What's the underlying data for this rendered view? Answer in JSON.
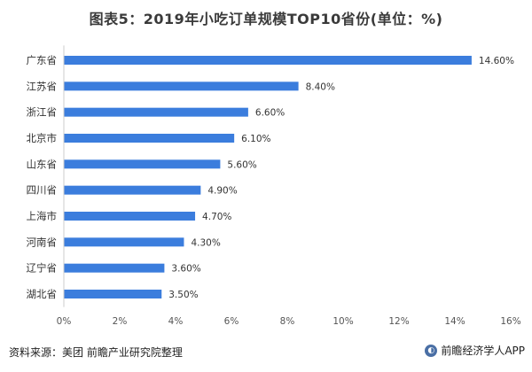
{
  "chart_data": {
    "type": "bar",
    "orientation": "horizontal",
    "title": "图表5：2019年小吃订单规模TOP10省份(单位：%)",
    "categories": [
      "广东省",
      "江苏省",
      "浙江省",
      "北京市",
      "山东省",
      "四川省",
      "上海市",
      "河南省",
      "辽宁省",
      "湖北省"
    ],
    "values": [
      14.6,
      8.4,
      6.6,
      6.1,
      5.6,
      4.9,
      4.7,
      4.3,
      3.6,
      3.5
    ],
    "value_labels": [
      "14.60%",
      "8.40%",
      "6.60%",
      "6.10%",
      "5.60%",
      "4.90%",
      "4.70%",
      "4.30%",
      "3.60%",
      "3.50%"
    ],
    "xlim": [
      0,
      16
    ],
    "x_ticks": [
      0,
      2,
      4,
      6,
      8,
      10,
      12,
      14,
      16
    ],
    "x_tick_labels": [
      "0%",
      "2%",
      "4%",
      "6%",
      "8%",
      "10%",
      "12%",
      "14%",
      "16%"
    ],
    "grid": false,
    "bar_color": "#3b7ddd",
    "xlabel": "",
    "ylabel": ""
  },
  "footer": {
    "source": "资料来源：美团 前瞻产业研究院整理",
    "brand": "前瞻经济学人APP"
  },
  "icons": {
    "brand": "qianzhan-logo-icon"
  }
}
